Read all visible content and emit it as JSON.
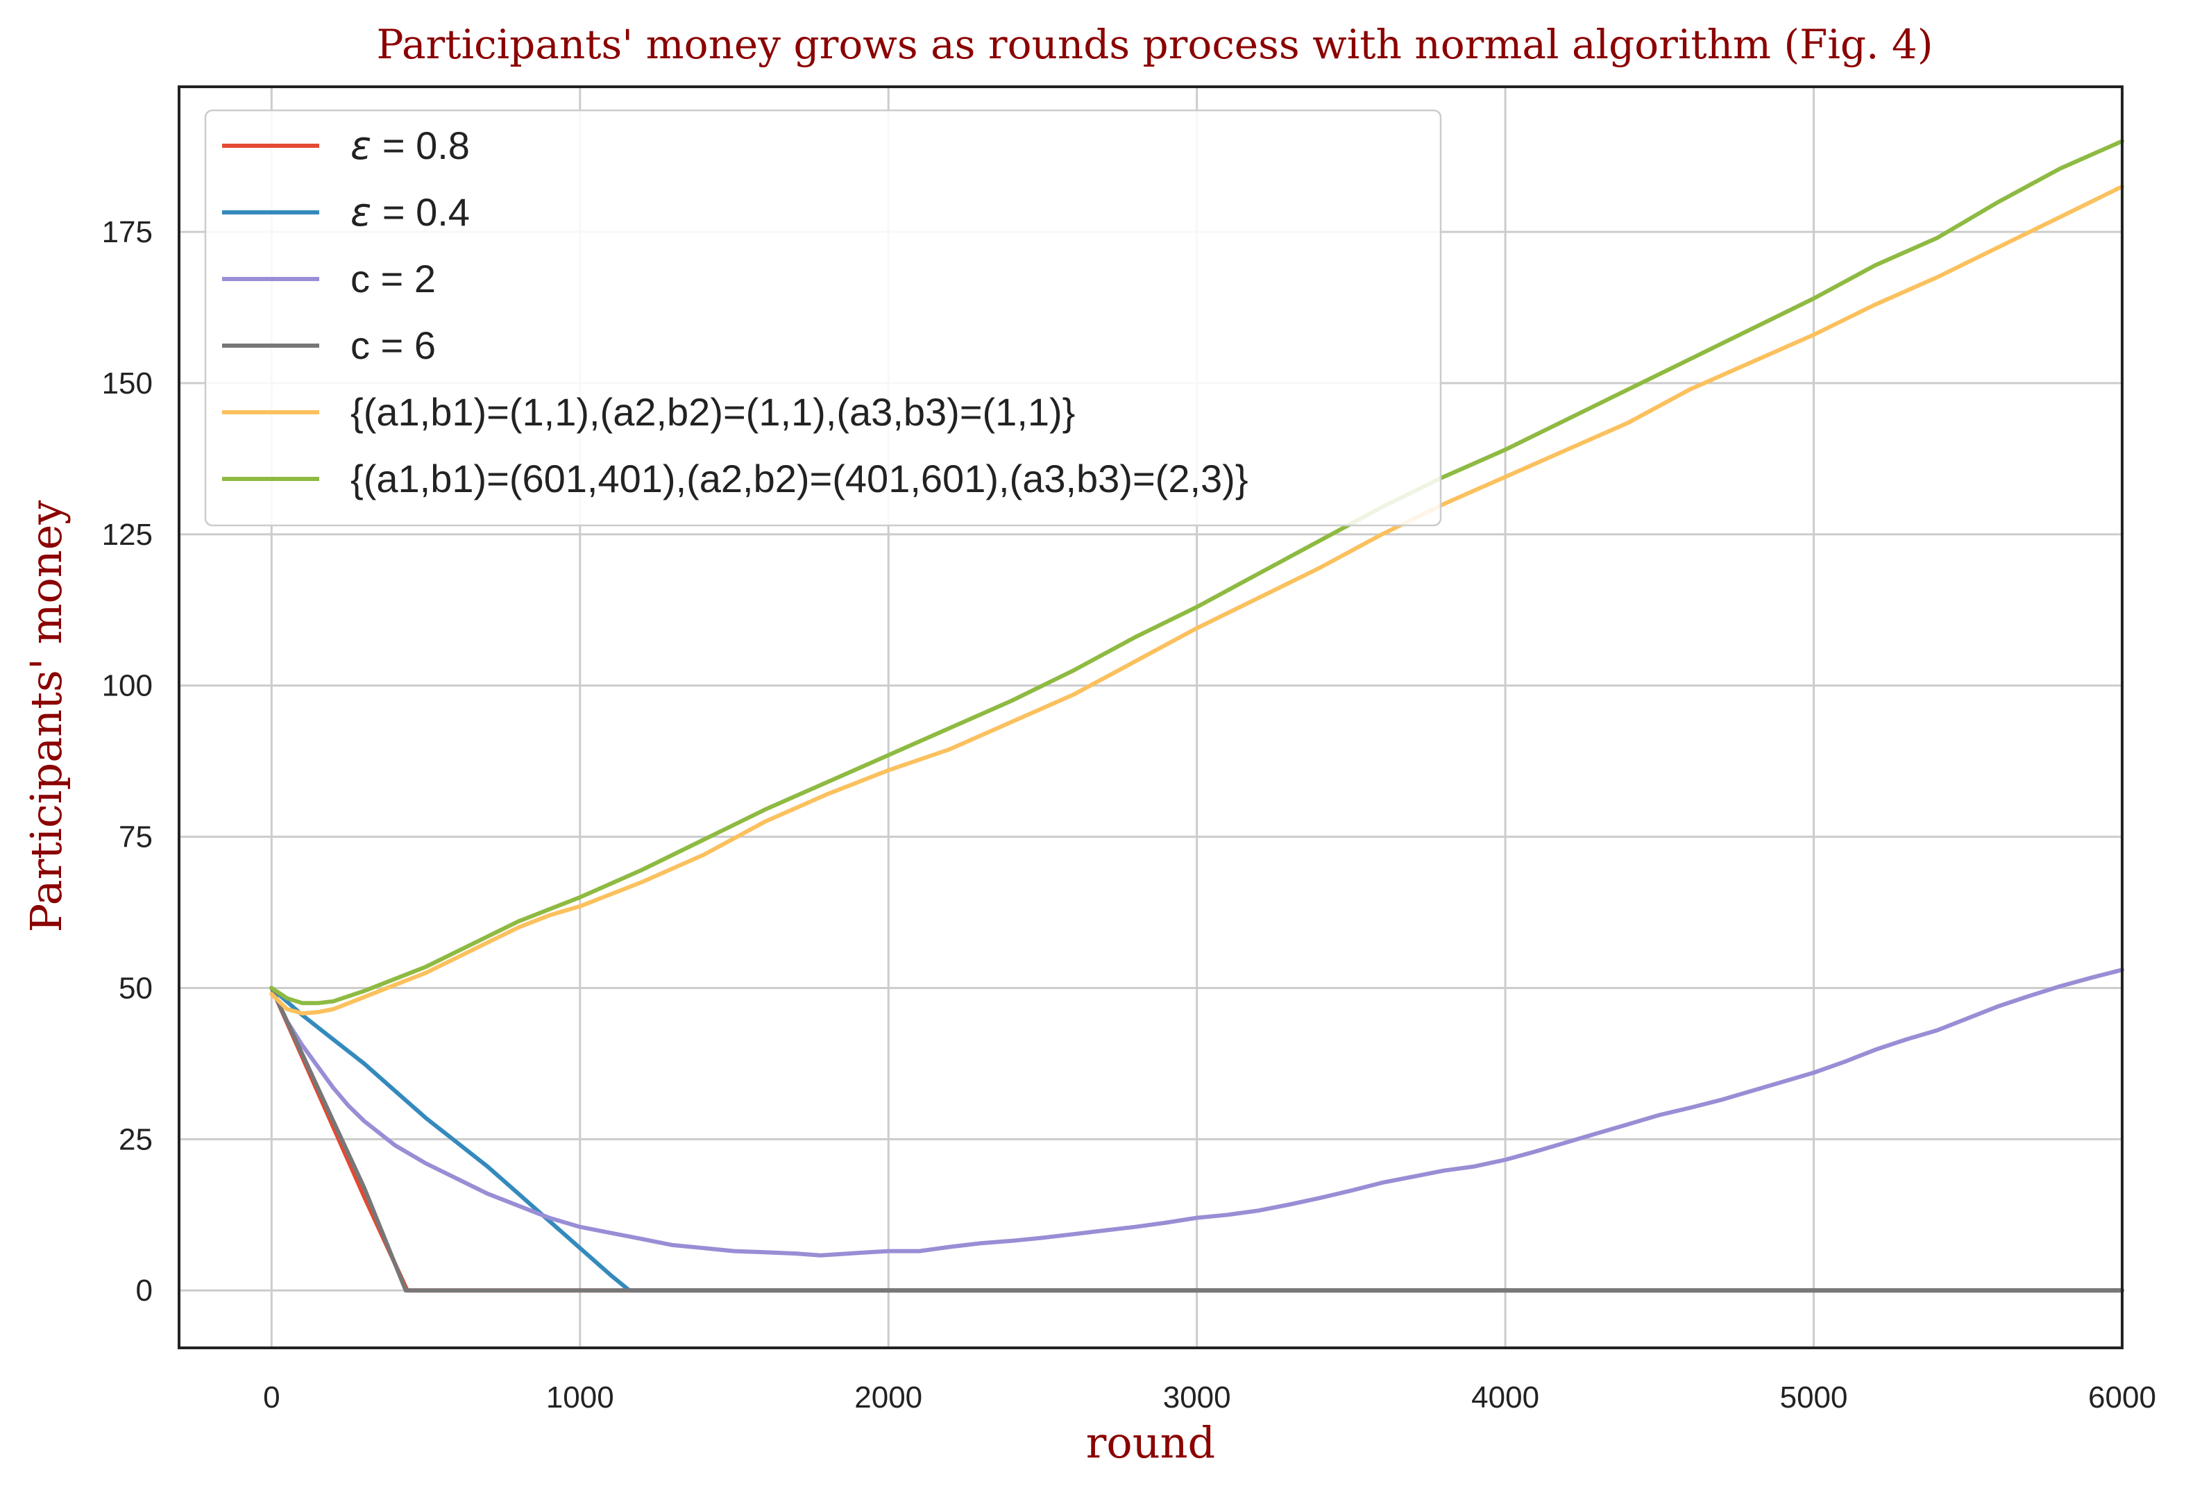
{
  "chart_data": {
    "type": "line",
    "title": "Participants' money grows as rounds process with normal algorithm (Fig. 4)",
    "xlabel": "round",
    "ylabel": "Participants' money",
    "xlim": [
      -300,
      6000
    ],
    "ylim": [
      -9.5,
      199
    ],
    "xticks": [
      0,
      1000,
      2000,
      3000,
      4000,
      5000,
      6000
    ],
    "yticks": [
      0,
      25,
      50,
      75,
      100,
      125,
      150,
      175
    ],
    "grid": true,
    "legend_position": "top-left",
    "series": [
      {
        "name_prefix": "ε",
        "name_suffix": " = 0.8",
        "color": "#e24a33",
        "x": [
          0,
          100,
          200,
          300,
          440,
          6000
        ],
        "y": [
          50,
          38.5,
          27,
          15.5,
          0,
          0
        ]
      },
      {
        "name_prefix": "ε",
        "name_suffix": " = 0.4",
        "color": "#348abd",
        "x": [
          0,
          100,
          200,
          300,
          400,
          500,
          600,
          700,
          800,
          900,
          1000,
          1100,
          1160,
          6000
        ],
        "y": [
          50,
          45.5,
          41.5,
          37.5,
          33,
          28.5,
          24.5,
          20.5,
          16,
          11.5,
          7,
          2.5,
          0,
          0
        ]
      },
      {
        "name": "c = 2",
        "color": "#988ed5",
        "x": [
          0,
          50,
          100,
          150,
          200,
          250,
          300,
          350,
          400,
          450,
          500,
          600,
          700,
          800,
          900,
          1000,
          1100,
          1200,
          1300,
          1400,
          1500,
          1600,
          1700,
          1780,
          1900,
          2000,
          2100,
          2200,
          2300,
          2400,
          2500,
          2600,
          2700,
          2800,
          2900,
          3000,
          3100,
          3200,
          3300,
          3400,
          3500,
          3600,
          3700,
          3800,
          3900,
          4000,
          4100,
          4200,
          4300,
          4400,
          4500,
          4600,
          4700,
          4800,
          4900,
          5000,
          5100,
          5200,
          5300,
          5400,
          5500,
          5600,
          5700,
          5800,
          5900,
          6000
        ],
        "y": [
          50,
          44.5,
          40.5,
          37,
          33.5,
          30.5,
          28,
          26,
          24,
          22.5,
          21,
          18.5,
          16,
          14,
          12,
          10.5,
          9.5,
          8.5,
          7.5,
          7,
          6.5,
          6.3,
          6.1,
          5.8,
          6.2,
          6.5,
          6.5,
          7.2,
          7.8,
          8.2,
          8.7,
          9.3,
          9.9,
          10.5,
          11.2,
          12,
          12.5,
          13.2,
          14.2,
          15.3,
          16.5,
          17.8,
          18.8,
          19.8,
          20.5,
          21.6,
          23,
          24.5,
          26,
          27.5,
          29,
          30.2,
          31.5,
          33,
          34.5,
          36,
          37.8,
          39.8,
          41.5,
          43,
          45,
          47,
          48.7,
          50.3,
          51.7,
          53
        ]
      },
      {
        "name": "c = 6",
        "color": "#777777",
        "x": [
          0,
          100,
          200,
          300,
          435,
          6000
        ],
        "y": [
          50,
          39,
          28,
          17,
          0,
          0
        ]
      },
      {
        "name": "{(a1,b1)=(1,1),(a2,b2)=(1,1),(a3,b3)=(1,1)}",
        "color": "#fbc15e",
        "x": [
          0,
          50,
          100,
          150,
          200,
          300,
          400,
          500,
          600,
          700,
          800,
          900,
          1000,
          1200,
          1400,
          1600,
          1800,
          2000,
          2200,
          2400,
          2600,
          2800,
          3000,
          3200,
          3400,
          3600,
          3800,
          4000,
          4200,
          4400,
          4600,
          4800,
          5000,
          5200,
          5400,
          5600,
          5800,
          6000
        ],
        "y": [
          49,
          46.5,
          45.8,
          46,
          46.5,
          48.5,
          50.5,
          52.5,
          55,
          57.5,
          60,
          62,
          63.5,
          67.5,
          72,
          77.5,
          82,
          86,
          89.5,
          94,
          98.5,
          104,
          109.5,
          114.5,
          119.5,
          125,
          130,
          134.5,
          139,
          143.5,
          149,
          153.5,
          158,
          163,
          167.5,
          172.5,
          177.5,
          182.5
        ]
      },
      {
        "name": "{(a1,b1)=(601,401),(a2,b2)=(401,601),(a3,b3)=(2,3)}",
        "color": "#8eba42",
        "x": [
          0,
          50,
          100,
          150,
          200,
          300,
          400,
          500,
          600,
          700,
          800,
          900,
          1000,
          1200,
          1400,
          1600,
          1800,
          2000,
          2200,
          2400,
          2600,
          2800,
          3000,
          3200,
          3400,
          3600,
          3800,
          4000,
          4200,
          4400,
          4600,
          4800,
          5000,
          5200,
          5400,
          5600,
          5800,
          6000
        ],
        "y": [
          50,
          48.3,
          47.5,
          47.5,
          47.8,
          49.5,
          51.5,
          53.5,
          56,
          58.5,
          61,
          63,
          65,
          69.5,
          74.5,
          79.5,
          84,
          88.5,
          93,
          97.5,
          102.5,
          108,
          113,
          118.5,
          124,
          129.5,
          134.5,
          139,
          144,
          149,
          154,
          159,
          164,
          169.5,
          174,
          180,
          185.5,
          190
        ]
      }
    ]
  }
}
